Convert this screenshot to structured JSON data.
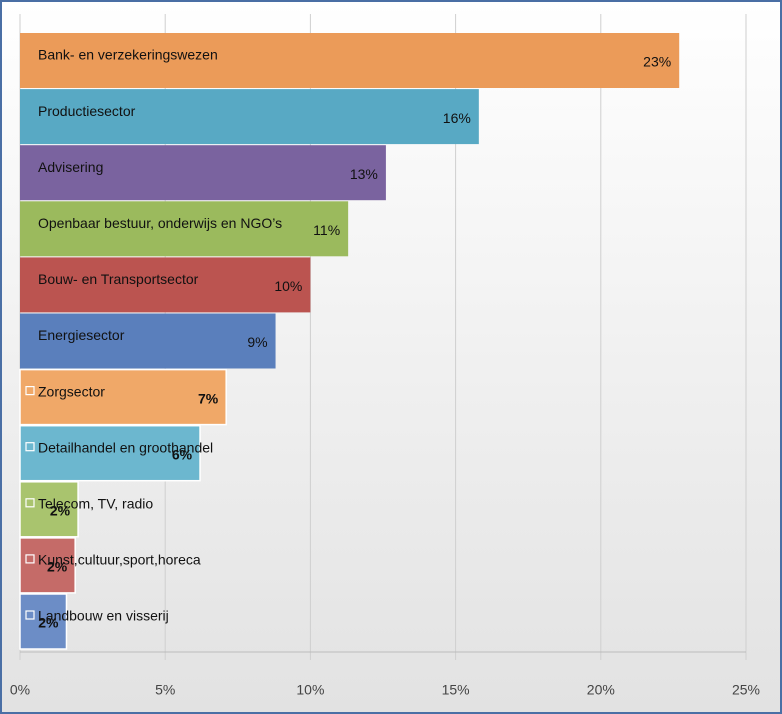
{
  "chart_data": {
    "type": "bar",
    "orientation": "horizontal",
    "categories": [
      "Bank- en verzekeringswezen",
      "Productiesector",
      "Advisering",
      "Openbaar bestuur, onderwijs en NGO’s",
      "Bouw- en Transportsector",
      "Energiesector",
      "Zorgsector",
      "Detailhandel en groothandel",
      "Telecom, TV, radio",
      "Kunst,cultuur,sport,horeca",
      "Landbouw en visserij"
    ],
    "values": [
      22.7,
      15.8,
      12.6,
      11.3,
      10.0,
      8.8,
      7.1,
      6.2,
      2.0,
      1.9,
      1.6
    ],
    "value_labels": [
      "23%",
      "16%",
      "13%",
      "11%",
      "10%",
      "9%",
      "7%",
      "6%",
      "2%",
      "2%",
      "2%"
    ],
    "colors": [
      "#eb9b59",
      "#58a9c4",
      "#7a639f",
      "#9bba5d",
      "#bb5450",
      "#5a7fbc",
      "#f0a868",
      "#6cb7cf",
      "#a9c46e",
      "#c56b68",
      "#6c8dc6"
    ],
    "xlim": [
      0,
      25
    ],
    "xticks": [
      {
        "value": 0,
        "label": "0%"
      },
      {
        "value": 5,
        "label": "5%"
      },
      {
        "value": 10,
        "label": "10%"
      },
      {
        "value": 15,
        "label": "15%"
      },
      {
        "value": 20,
        "label": "20%"
      },
      {
        "value": 25,
        "label": "25%"
      }
    ],
    "grid": true
  }
}
